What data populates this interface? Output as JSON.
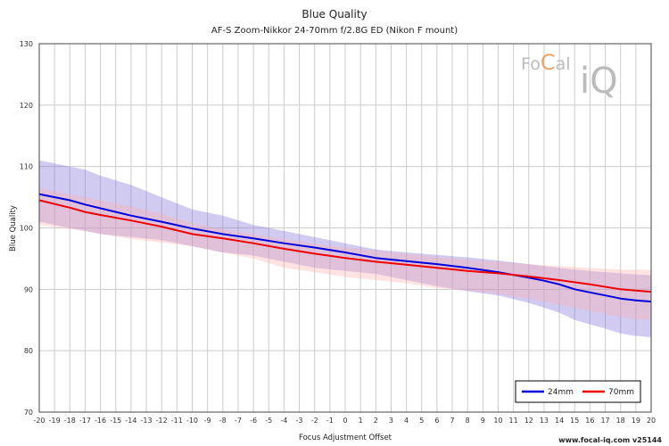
{
  "chart_data": {
    "type": "line",
    "title": "Blue Quality",
    "subtitle": "AF-S Zoom-Nikkor 24-70mm f/2.8G ED (Nikon F mount)",
    "xlabel": "Focus Adjustment Offset",
    "ylabel": "Blue Quality",
    "xlim": [
      -20,
      20
    ],
    "ylim": [
      70,
      130
    ],
    "xticks": [
      -20,
      -19,
      -18,
      -17,
      -16,
      -15,
      -14,
      -13,
      -12,
      -11,
      -10,
      -9,
      -8,
      -7,
      -6,
      -5,
      -4,
      -3,
      -2,
      -1,
      0,
      1,
      2,
      3,
      4,
      5,
      6,
      7,
      8,
      9,
      10,
      11,
      12,
      13,
      14,
      15,
      16,
      17,
      18,
      19,
      20
    ],
    "yticks": [
      70,
      80,
      90,
      100,
      110,
      120,
      130
    ],
    "grid": true,
    "legend_position": "bottom-right",
    "series": [
      {
        "name": "24mm",
        "color": "#0000dd",
        "band_color": "#7b6bd6",
        "x": [
          -20,
          -18,
          -17,
          -16,
          -14,
          -12,
          -10,
          -8,
          -6,
          -4,
          -2,
          0,
          2,
          4,
          6,
          8,
          10,
          12,
          13,
          14,
          15,
          16,
          17,
          18,
          19,
          20
        ],
        "values": [
          105.5,
          104.5,
          103.8,
          103.2,
          102.0,
          101.0,
          99.9,
          99.0,
          98.3,
          97.5,
          96.8,
          96.0,
          95.1,
          94.6,
          94.1,
          93.5,
          92.8,
          91.9,
          91.4,
          90.8,
          90.0,
          89.5,
          89.0,
          88.5,
          88.2,
          88.0
        ],
        "upper": [
          111.0,
          110.0,
          109.5,
          108.5,
          107.0,
          105.0,
          103.0,
          102.0,
          100.5,
          99.5,
          98.5,
          97.5,
          96.5,
          96.0,
          95.6,
          95.2,
          94.7,
          94.1,
          93.8,
          93.5,
          93.2,
          93.0,
          92.8,
          92.6,
          92.4,
          92.3
        ],
        "lower": [
          101.0,
          100.0,
          99.5,
          99.0,
          98.5,
          98.0,
          97.0,
          96.0,
          95.5,
          94.5,
          93.5,
          93.0,
          92.5,
          91.5,
          90.5,
          89.7,
          89.0,
          87.8,
          87.0,
          86.2,
          85.0,
          84.3,
          83.6,
          82.8,
          82.4,
          82.2
        ]
      },
      {
        "name": "70mm",
        "color": "#ee0000",
        "band_color": "#ffb0b0",
        "x": [
          -20,
          -18,
          -17,
          -16,
          -14,
          -12,
          -10,
          -8,
          -6,
          -4,
          -2,
          0,
          2,
          4,
          6,
          8,
          10,
          12,
          14,
          16,
          18,
          19,
          20
        ],
        "values": [
          104.5,
          103.3,
          102.6,
          102.1,
          101.2,
          100.2,
          99.0,
          98.3,
          97.5,
          96.6,
          95.8,
          95.1,
          94.5,
          94.0,
          93.5,
          93.0,
          92.6,
          92.1,
          91.5,
          90.8,
          90.0,
          89.8,
          89.6
        ],
        "upper": [
          106.5,
          105.5,
          105.0,
          104.5,
          103.5,
          102.3,
          100.8,
          99.8,
          99.0,
          98.2,
          97.4,
          96.8,
          96.3,
          95.8,
          95.3,
          94.8,
          94.5,
          94.1,
          93.8,
          93.5,
          93.2,
          93.2,
          93.2
        ],
        "lower": [
          100.5,
          99.8,
          99.5,
          99.0,
          98.2,
          97.6,
          97.0,
          96.0,
          95.0,
          93.5,
          92.8,
          92.0,
          91.5,
          91.0,
          90.2,
          89.8,
          89.3,
          88.5,
          87.5,
          86.5,
          85.5,
          85.2,
          85.0
        ]
      }
    ]
  },
  "branding": {
    "logo_part1": "Fo",
    "logo_part2": "C",
    "logo_part3": "al",
    "logo_iq": "iQ",
    "footer": "www.focal-iq.com  v25144"
  }
}
